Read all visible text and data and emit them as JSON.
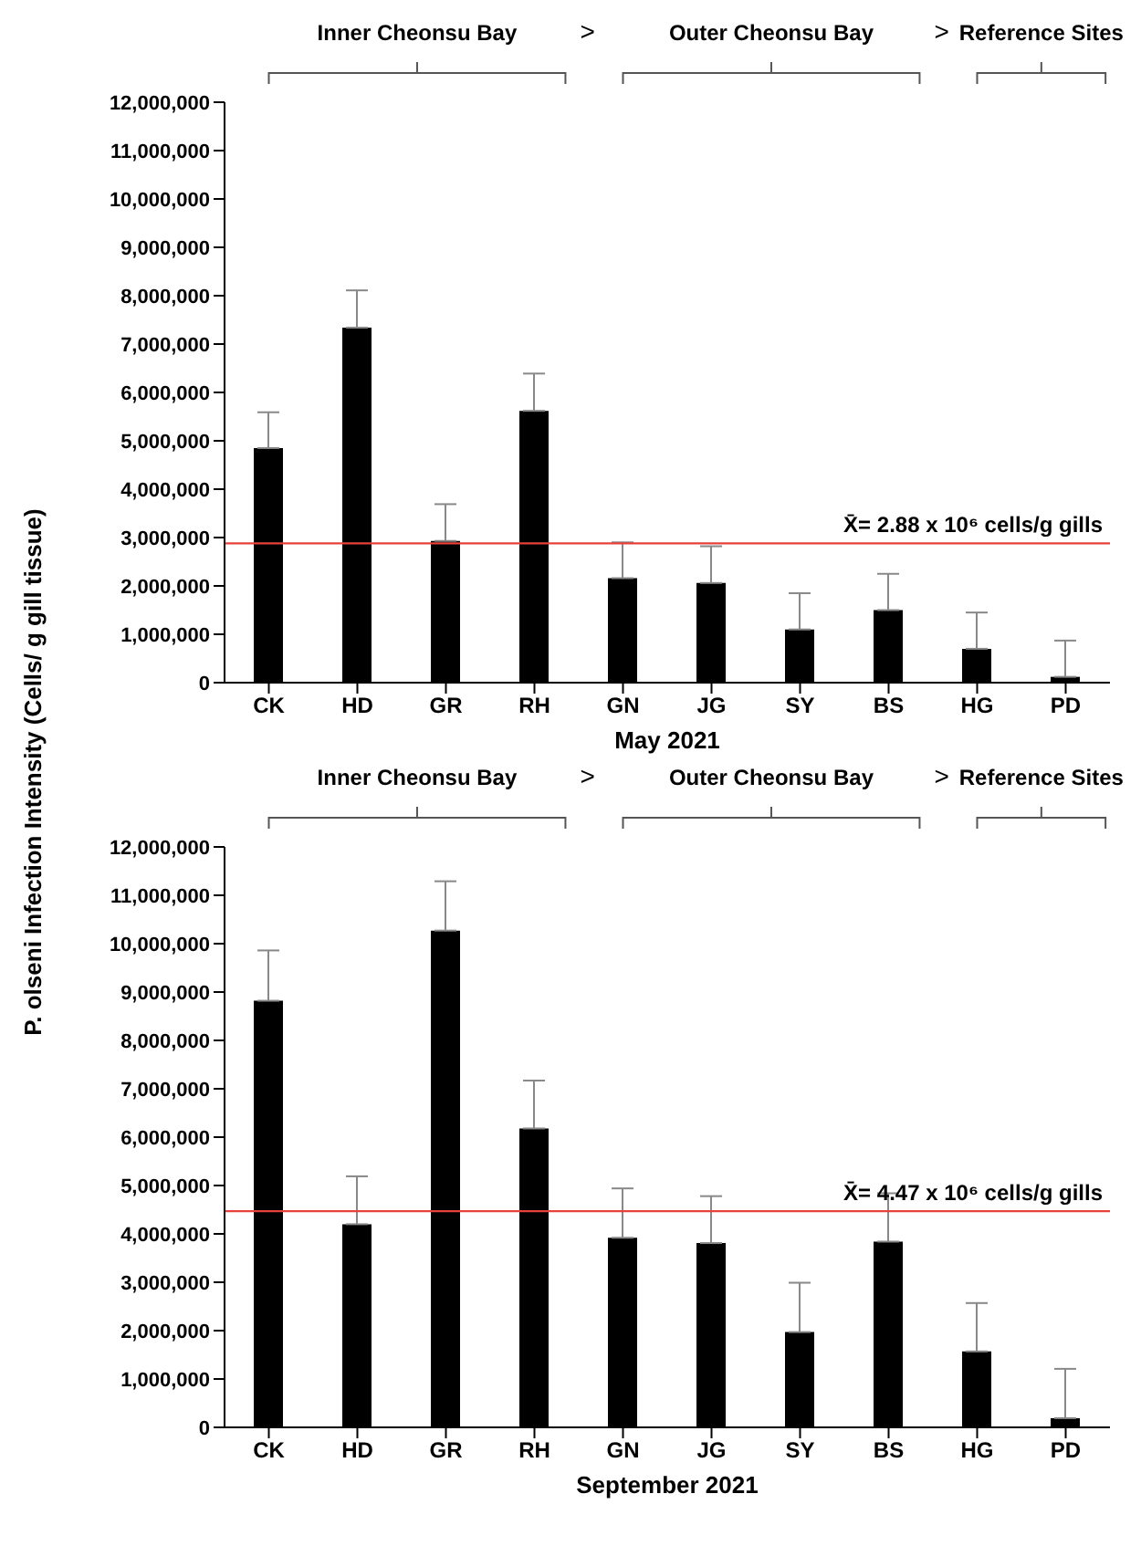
{
  "chart_data": [
    {
      "type": "bar",
      "ylabel": "P. olseni Infection Intensity (Cells/ g gill tissue)",
      "xlabel": "May 2021",
      "categories": [
        "CK",
        "HD",
        "GR",
        "RH",
        "GN",
        "JG",
        "SY",
        "BS",
        "HG",
        "PD"
      ],
      "values": [
        4850000,
        7340000,
        2930000,
        5620000,
        2160000,
        2060000,
        1100000,
        1500000,
        700000,
        120000
      ],
      "color": "#000000",
      "errors": [
        [
          4850000,
          5590000
        ],
        [
          7340000,
          8110000
        ],
        [
          2930000,
          3690000
        ],
        [
          5620000,
          6390000
        ],
        [
          2160000,
          2900000
        ],
        [
          2060000,
          2820000
        ],
        [
          1100000,
          1850000
        ],
        [
          1500000,
          2250000
        ],
        [
          700000,
          1450000
        ],
        [
          120000,
          870000
        ]
      ],
      "ylim": [
        0,
        12000000
      ],
      "yticks": [
        0,
        {
          "value": 1000000,
          "label": "1,000,000"
        },
        {
          "value": 2000000,
          "label": "2,000,000"
        },
        {
          "value": 3000000,
          "label": "3,000,000"
        },
        {
          "value": 4000000,
          "label": "4,000,000"
        },
        {
          "value": 5000000,
          "label": "5,000,000"
        },
        {
          "value": 6000000,
          "label": "6,000,000"
        },
        {
          "value": 7000000,
          "label": "7,000,000"
        },
        {
          "value": 8000000,
          "label": "8,000,000"
        },
        {
          "value": 9000000,
          "label": "9,000,000"
        },
        {
          "value": 10000000,
          "label": "10,000,000"
        },
        {
          "value": 11000000,
          "label": "11,000,000"
        },
        {
          "value": 12000000,
          "label": "12,000,000"
        }
      ],
      "ref_lines": [
        {
          "axis": "y",
          "value": 2880000,
          "color": "#e8403a"
        }
      ],
      "annotations": [
        "Inner Cheonsu Bay",
        ">",
        "Outer Cheonsu Bay",
        ">",
        "Reference Sites",
        "X̄= 2.88 x 10⁶ cells/g gills"
      ],
      "grid": false,
      "legend": false
    },
    {
      "type": "bar",
      "xlabel": "September 2021",
      "categories": [
        "CK",
        "HD",
        "GR",
        "RH",
        "GN",
        "JG",
        "SY",
        "BS",
        "HG",
        "PD"
      ],
      "values": [
        8820000,
        4200000,
        10270000,
        6180000,
        3920000,
        3810000,
        1970000,
        3840000,
        1570000,
        190000
      ],
      "color": "#000000",
      "errors": [
        [
          8820000,
          9860000
        ],
        [
          4200000,
          5190000
        ],
        [
          10270000,
          11290000
        ],
        [
          6180000,
          7170000
        ],
        [
          3920000,
          4940000
        ],
        [
          3810000,
          4780000
        ],
        [
          1970000,
          2990000
        ],
        [
          3840000,
          4840000
        ],
        [
          1570000,
          2570000
        ],
        [
          190000,
          1210000
        ]
      ],
      "ylim": [
        0,
        12000000
      ],
      "yticks": [
        0,
        {
          "value": 1000000,
          "label": "1,000,000"
        },
        {
          "value": 2000000,
          "label": "2,000,000"
        },
        {
          "value": 3000000,
          "label": "3,000,000"
        },
        {
          "value": 4000000,
          "label": "4,000,000"
        },
        {
          "value": 5000000,
          "label": "5,000,000"
        },
        {
          "value": 6000000,
          "label": "6,000,000"
        },
        {
          "value": 7000000,
          "label": "7,000,000"
        },
        {
          "value": 8000000,
          "label": "8,000,000"
        },
        {
          "value": 9000000,
          "label": "9,000,000"
        },
        {
          "value": 10000000,
          "label": "10,000,000"
        },
        {
          "value": 11000000,
          "label": "11,000,000"
        },
        {
          "value": 12000000,
          "label": "12,000,000"
        }
      ],
      "ref_lines": [
        {
          "axis": "y",
          "value": 4470000,
          "color": "#e8403a"
        }
      ],
      "annotations": [
        "Inner Cheonsu Bay",
        ">",
        "Outer Cheonsu Bay",
        ">",
        "Reference Sites",
        "X̄= 4.47 x 10⁶ cells/g gills"
      ],
      "grid": false,
      "legend": false
    }
  ]
}
